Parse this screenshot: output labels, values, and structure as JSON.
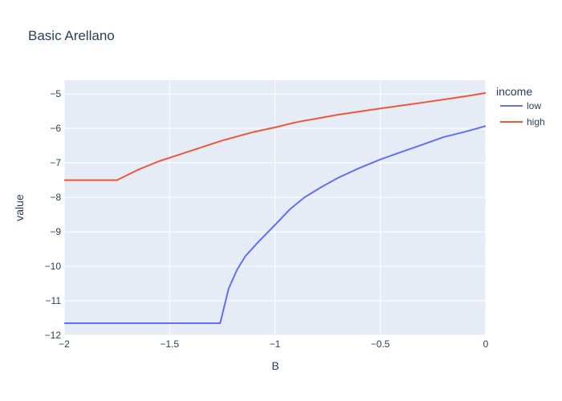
{
  "chart_data": {
    "type": "line",
    "title": "Basic Arellano",
    "xlabel": "B",
    "ylabel": "value",
    "xlim": [
      -2,
      0
    ],
    "ylim": [
      -12,
      -4.6
    ],
    "x_ticks": [
      -2,
      -1.5,
      -1,
      -0.5,
      0
    ],
    "x_tick_labels": [
      "−2",
      "−1.5",
      "−1",
      "−0.5",
      "0"
    ],
    "y_ticks": [
      -12,
      -11,
      -10,
      -9,
      -8,
      -7,
      -6,
      -5
    ],
    "y_tick_labels": [
      "−12",
      "−11",
      "−10",
      "−9",
      "−8",
      "−7",
      "−6",
      "−5"
    ],
    "grid": true,
    "legend": {
      "title": "income",
      "placement": "right"
    },
    "series": [
      {
        "name": "low",
        "color": "#636efa",
        "points": [
          [
            -2.0,
            -11.65
          ],
          [
            -1.5,
            -11.65
          ],
          [
            -1.26,
            -11.65
          ],
          [
            -1.22,
            -10.65
          ],
          [
            -1.18,
            -10.1
          ],
          [
            -1.14,
            -9.7
          ],
          [
            -1.08,
            -9.3
          ],
          [
            -1.0,
            -8.8
          ],
          [
            -0.93,
            -8.35
          ],
          [
            -0.86,
            -8.0
          ],
          [
            -0.78,
            -7.7
          ],
          [
            -0.7,
            -7.43
          ],
          [
            -0.6,
            -7.15
          ],
          [
            -0.5,
            -6.9
          ],
          [
            -0.4,
            -6.68
          ],
          [
            -0.3,
            -6.47
          ],
          [
            -0.2,
            -6.25
          ],
          [
            -0.1,
            -6.1
          ],
          [
            0.0,
            -5.93
          ]
        ]
      },
      {
        "name": "high",
        "color": "#ef553b",
        "points": [
          [
            -2.0,
            -7.5
          ],
          [
            -1.75,
            -7.5
          ],
          [
            -1.65,
            -7.2
          ],
          [
            -1.55,
            -6.95
          ],
          [
            -1.45,
            -6.75
          ],
          [
            -1.35,
            -6.55
          ],
          [
            -1.25,
            -6.35
          ],
          [
            -1.1,
            -6.1
          ],
          [
            -1.0,
            -5.97
          ],
          [
            -0.9,
            -5.82
          ],
          [
            -0.7,
            -5.6
          ],
          [
            -0.5,
            -5.42
          ],
          [
            -0.3,
            -5.25
          ],
          [
            -0.1,
            -5.07
          ],
          [
            0.0,
            -4.97
          ]
        ]
      }
    ]
  }
}
